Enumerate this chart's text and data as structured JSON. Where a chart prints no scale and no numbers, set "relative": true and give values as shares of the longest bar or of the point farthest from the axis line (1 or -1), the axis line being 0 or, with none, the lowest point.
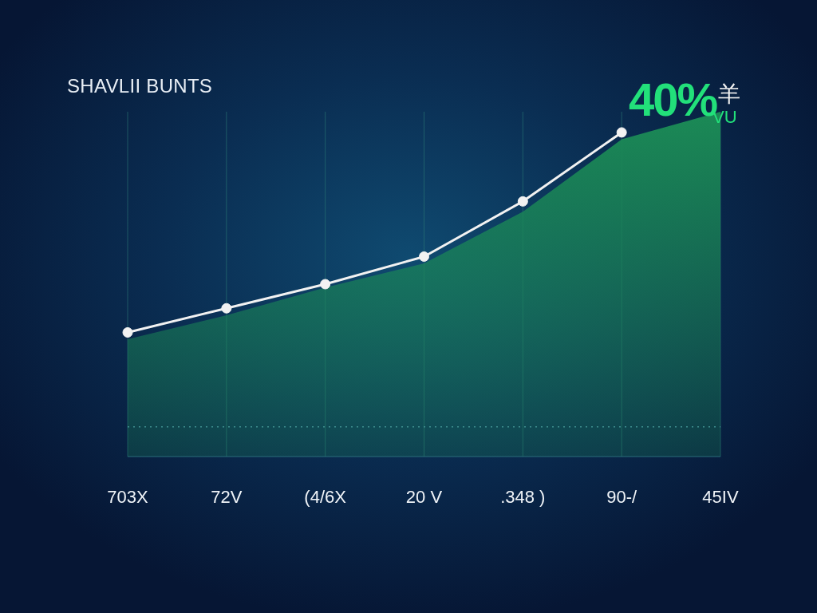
{
  "chart_data": {
    "type": "area",
    "title": "SHAVLII BUNTS",
    "annotations": [
      "40%",
      "羊",
      "VU"
    ],
    "categories": [
      "703X",
      "72V",
      "(4/6X",
      "20 V",
      ".348 )",
      "90-/",
      "45IV"
    ],
    "relative": true,
    "series": [
      {
        "color": "#1b8a56",
        "values": [
          0.34,
          0.41,
          0.49,
          0.56,
          0.71,
          0.92,
          1.0
        ]
      },
      {
        "type": "line",
        "color": "#f2f2f2",
        "marker": "circle",
        "values": [
          0.36,
          0.43,
          0.5,
          0.58,
          0.74,
          0.94,
          null
        ]
      }
    ],
    "ref_lines": [
      {
        "axis": "y",
        "value": 0.086,
        "color": "#3f8f8f",
        "line_style": "dotted"
      }
    ],
    "grid": "x"
  }
}
